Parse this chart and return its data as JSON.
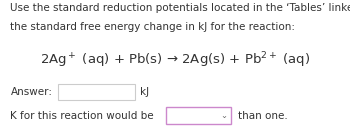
{
  "bg_color": "#ffffff",
  "text_color": "#333333",
  "line1": "Use the standard reduction potentials located in the ‘Tables’ linked above to calculate",
  "line2": "the standard free energy change in kJ for the reaction:",
  "equation": "2Ag$^+$ (aq) + Pb(s) → 2Ag(s) + Pb$^{2+}$ (aq)",
  "answer_label": "Answer:",
  "answer_unit": "kJ",
  "k_label": "K for this reaction would be",
  "k_suffix": "than one.",
  "font_size_body": 7.5,
  "font_size_eq": 9.5,
  "box1_color": "#cccccc",
  "box2_color": "#cc88cc",
  "box2_face": "#ffffff"
}
